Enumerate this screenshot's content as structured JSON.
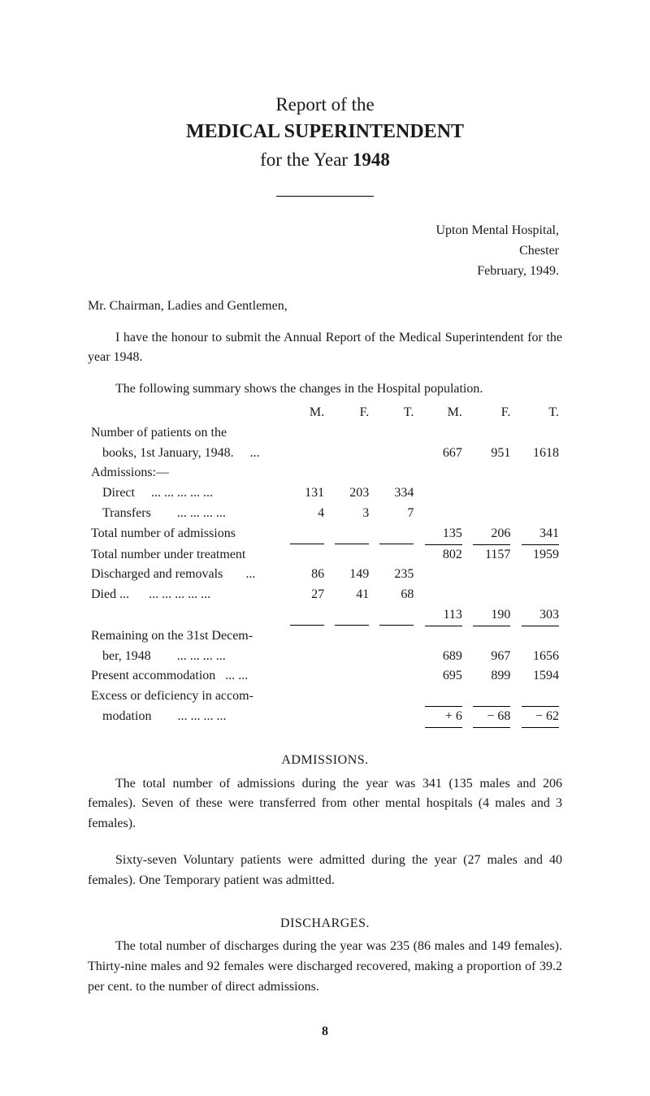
{
  "header": {
    "line1": "Report of the",
    "line2": "MEDICAL SUPERINTENDENT",
    "line3_a": "for the Year ",
    "line3_b": "1948"
  },
  "address": {
    "l1": "Upton Mental Hospital,",
    "l2": "Chester",
    "l3": "February, 1949."
  },
  "salutation": "Mr. Chairman, Ladies and Gentlemen,",
  "intro": {
    "p1": "I have the honour to submit the Annual Report of the Medical Superintendent for the year 1948.",
    "p2": "The following summary shows the changes in the Hospital population."
  },
  "cols": {
    "m": "M.",
    "f": "F.",
    "t": "T.",
    "m2": "M.",
    "f2": "F.",
    "t2": "T."
  },
  "rows": {
    "books_a": "Number   of    patients    on    the",
    "books_b": "books,  1st  January,  1948.",
    "books_dots": "...",
    "books_m2": "667",
    "books_f2": "951",
    "books_t2": "1618",
    "admissions_head": "Admissions:—",
    "direct_lbl": "Direct",
    "direct_dots": "...    ...    ...    ...    ...",
    "direct_m": "131",
    "direct_f": "203",
    "direct_t": "334",
    "transfers_lbl": "Transfers",
    "transfers_dots": "...    ...    ...    ...",
    "transfers_m": "4",
    "transfers_f": "3",
    "transfers_t": "7",
    "total_adm_lbl": "Total  number   of   admissions",
    "total_adm_m2": "135",
    "total_adm_f2": "206",
    "total_adm_t2": "341",
    "under_trt_lbl": "Total number under  treatment",
    "under_trt_m2": "802",
    "under_trt_f2": "1157",
    "under_trt_t2": "1959",
    "disch_lbl": "Discharged and removals",
    "disch_dots": "...",
    "disch_m": "86",
    "disch_f": "149",
    "disch_t": "235",
    "died_lbl": "Died ...",
    "died_dots": "...    ...    ...    ...    ...",
    "died_m": "27",
    "died_f": "41",
    "died_t": "68",
    "sub_m2": "113",
    "sub_f2": "190",
    "sub_t2": "303",
    "rem_a": "Remaining  on  the  31st  Decem-",
    "rem_b": "ber,  1948",
    "rem_dots": "...    ...    ...    ...",
    "rem_m2": "689",
    "rem_f2": "967",
    "rem_t2": "1656",
    "pres_lbl": "Present  accommodation",
    "pres_dots": "...    ...",
    "pres_m2": "695",
    "pres_f2": "899",
    "pres_t2": "1594",
    "exc_a": "Excess  or  deficiency  in  accom-",
    "exc_b": "modation",
    "exc_dots": "...    ...    ...    ...",
    "exc_m2": "+ 6",
    "exc_f2": "− 68",
    "exc_t2": "− 62"
  },
  "admissions": {
    "head": "ADMISSIONS.",
    "p": "The total number of admissions during the year was 341 (135 males and 206 females). Seven of these were transferred from other mental hospitals (4 males and 3 females).",
    "p2": "Sixty-seven Voluntary patients were admitted during the year (27 males and 40 females). One Temporary patient was admitted."
  },
  "discharges": {
    "head": "DISCHARGES.",
    "p": "The total number of discharges during the year was 235 (86 males and 149 females). Thirty-nine males and 92 females were discharged recovered, making a proportion of 39.2 per cent. to the number of direct admissions."
  },
  "page_number": "8"
}
